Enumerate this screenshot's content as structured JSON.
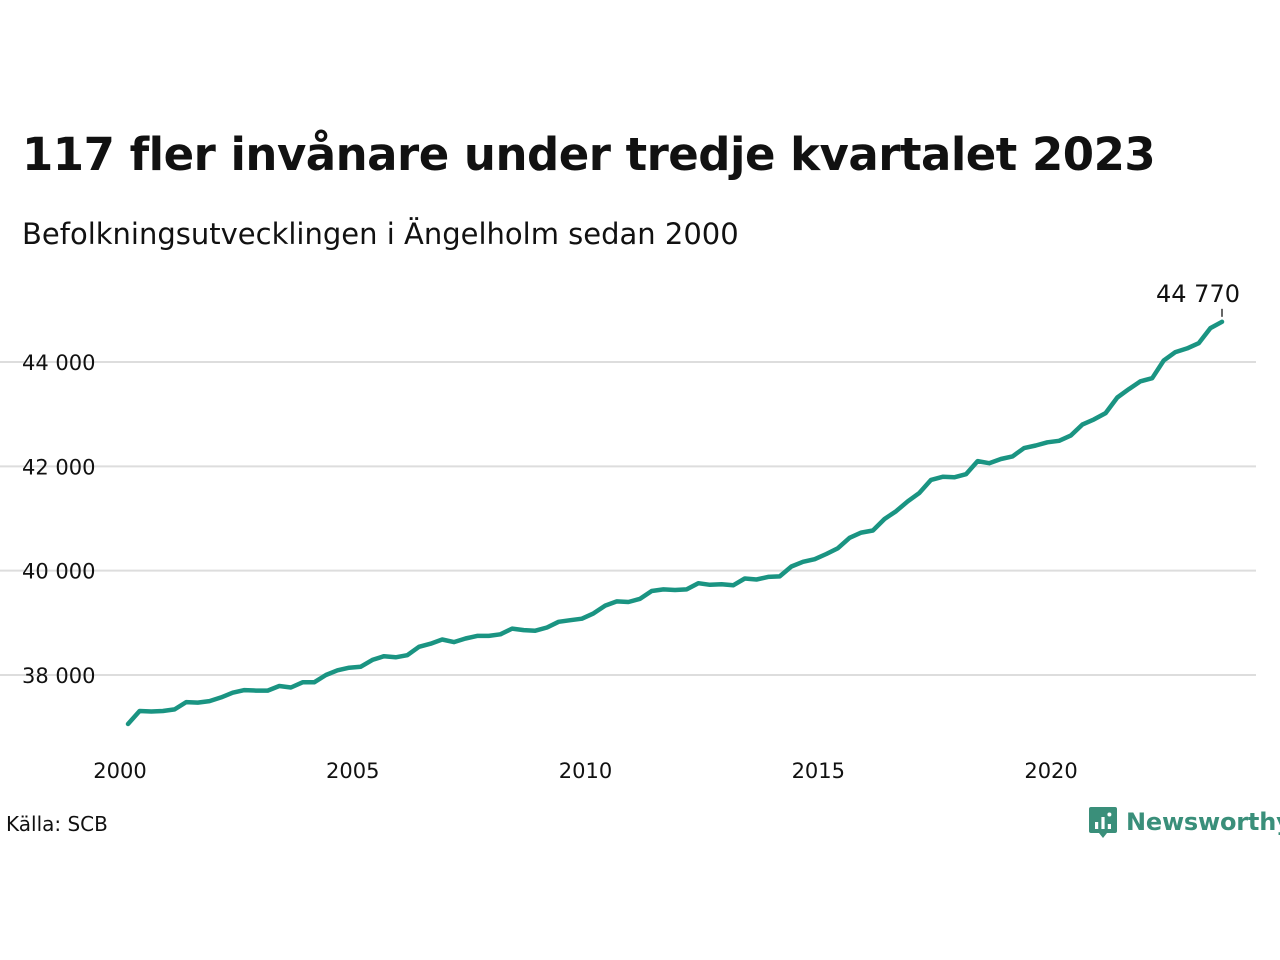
{
  "header": {
    "title": "117 fler invånare under tredje kvartalet 2023",
    "subtitle": "Befolkningsutvecklingen i Ängelholm sedan 2000"
  },
  "footer": {
    "source": "Källa: SCB",
    "logo_text": "Newsworthy"
  },
  "colors": {
    "line": "#1a9482",
    "grid": "#dddddd",
    "logo": "#3a8f7a"
  },
  "chart_data": {
    "type": "line",
    "title": "117 fler invånare under tredje kvartalet 2023",
    "subtitle": "Befolkningsutvecklingen i Ängelholm sedan 2000",
    "xlabel": "",
    "ylabel": "",
    "xlim": [
      2000,
      2024.5
    ],
    "ylim": [
      37000,
      44900
    ],
    "x_ticks": [
      2000,
      2005,
      2010,
      2015,
      2020
    ],
    "x_tick_labels": [
      "2000",
      "2005",
      "2010",
      "2015",
      "2020"
    ],
    "y_ticks": [
      38000,
      40000,
      42000,
      44000
    ],
    "y_tick_labels": [
      "38 000",
      "40 000",
      "42 000",
      "44 000"
    ],
    "grid": "horizontal",
    "legend": "none",
    "end_label": "44 770",
    "series": [
      {
        "x": [
          2000.0,
          2000.25,
          2000.5,
          2000.75,
          2001.0,
          2001.25,
          2001.5,
          2001.75,
          2002.0,
          2002.25,
          2002.5,
          2002.75,
          2003.0,
          2003.25,
          2003.5,
          2003.75,
          2004.0,
          2004.25,
          2004.5,
          2004.75,
          2005.0,
          2005.25,
          2005.5,
          2005.75,
          2006.0,
          2006.25,
          2006.5,
          2006.75,
          2007.0,
          2007.25,
          2007.5,
          2007.75,
          2008.0,
          2008.25,
          2008.5,
          2008.75,
          2009.0,
          2009.25,
          2009.5,
          2009.75,
          2010.0,
          2010.25,
          2010.5,
          2010.75,
          2011.0,
          2011.25,
          2011.5,
          2011.75,
          2012.0,
          2012.25,
          2012.5,
          2012.75,
          2013.0,
          2013.25,
          2013.5,
          2013.75,
          2014.0,
          2014.25,
          2014.5,
          2014.75,
          2015.0,
          2015.25,
          2015.5,
          2015.75,
          2016.0,
          2016.25,
          2016.5,
          2016.75,
          2017.0,
          2017.25,
          2017.5,
          2017.75,
          2018.0,
          2018.25,
          2018.5,
          2018.75,
          2019.0,
          2019.25,
          2019.5,
          2019.75,
          2020.0,
          2020.25,
          2020.5,
          2020.75,
          2021.0,
          2021.25,
          2021.5,
          2021.75,
          2022.0,
          2022.25,
          2022.5,
          2022.75,
          2023.0,
          2023.25,
          2023.5
        ],
        "y": [
          37060,
          37310,
          37300,
          37310,
          37340,
          37480,
          37470,
          37500,
          37570,
          37660,
          37710,
          37700,
          37700,
          37790,
          37760,
          37860,
          37860,
          38000,
          38090,
          38140,
          38160,
          38290,
          38360,
          38340,
          38380,
          38540,
          38600,
          38680,
          38630,
          38700,
          38750,
          38750,
          38780,
          38890,
          38860,
          38850,
          38910,
          39020,
          39050,
          39080,
          39180,
          39330,
          39410,
          39400,
          39460,
          39610,
          39640,
          39630,
          39640,
          39760,
          39730,
          39740,
          39720,
          39850,
          39830,
          39880,
          39890,
          40080,
          40170,
          40220,
          40320,
          40430,
          40630,
          40730,
          40770,
          40990,
          41140,
          41330,
          41490,
          41740,
          41800,
          41790,
          41850,
          42100,
          42060,
          42140,
          42190,
          42350,
          42400,
          42460,
          42490,
          42590,
          42800,
          42900,
          43020,
          43320,
          43480,
          43630,
          43690,
          44030,
          44190,
          44260,
          44360,
          44650,
          44770
        ]
      }
    ]
  }
}
